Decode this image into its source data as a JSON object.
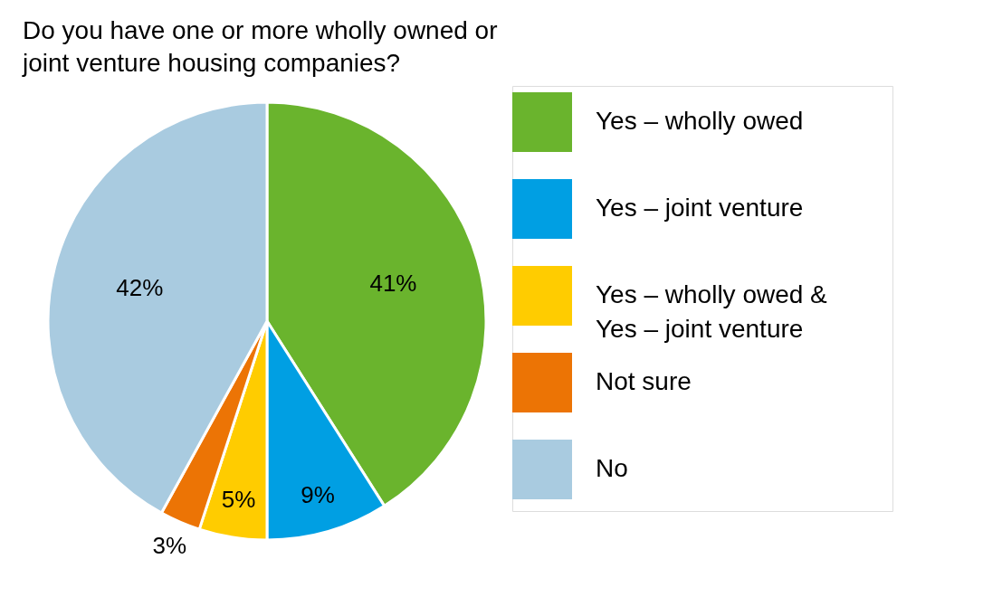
{
  "chart_data": {
    "type": "pie",
    "title": "Do you have one or more wholly owned or\njoint venture housing companies?",
    "categories": [
      "Yes – wholly owed",
      "Yes – joint venture",
      "Yes – wholly owed & Yes – joint venture",
      "Not sure",
      "No"
    ],
    "values": [
      41,
      9,
      5,
      3,
      42
    ],
    "colors": [
      "#6ab42d",
      "#009fe3",
      "#ffcc00",
      "#ec7405",
      "#a9cbe0"
    ],
    "value_labels": [
      "41%",
      "9%",
      "5%",
      "3%",
      "42%"
    ],
    "legend": "right"
  }
}
